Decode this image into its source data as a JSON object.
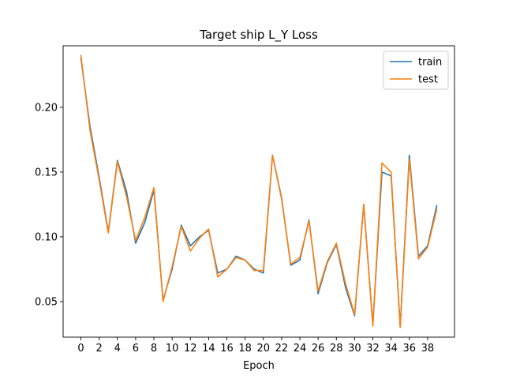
{
  "chart_data": {
    "type": "line",
    "title": "Target ship L_Y Loss",
    "xlabel": "Epoch",
    "ylabel": "",
    "x": [
      0,
      1,
      2,
      3,
      4,
      5,
      6,
      7,
      8,
      9,
      10,
      11,
      12,
      13,
      14,
      15,
      16,
      17,
      18,
      19,
      20,
      21,
      22,
      23,
      24,
      25,
      26,
      27,
      28,
      29,
      30,
      31,
      32,
      33,
      34,
      35,
      36,
      37,
      38,
      39
    ],
    "x_ticks": [
      0,
      2,
      4,
      6,
      8,
      10,
      12,
      14,
      16,
      18,
      20,
      22,
      24,
      26,
      28,
      30,
      32,
      34,
      36,
      38
    ],
    "y_ticks": [
      0.05,
      0.1,
      0.15,
      0.2
    ],
    "y_tick_labels": [
      "0.05",
      "0.10",
      "0.15",
      "0.20"
    ],
    "xlim": [
      -1.95,
      40.95
    ],
    "ylim": [
      0.0225,
      0.2475
    ],
    "legend_position": "top-right",
    "grid": false,
    "series": [
      {
        "name": "train",
        "color": "#1f77b4",
        "values": [
          0.238,
          0.185,
          0.146,
          0.104,
          0.159,
          0.135,
          0.095,
          0.111,
          0.136,
          0.051,
          0.075,
          0.109,
          0.093,
          0.1,
          0.105,
          0.072,
          0.075,
          0.085,
          0.082,
          0.075,
          0.072,
          0.163,
          0.13,
          0.078,
          0.082,
          0.113,
          0.056,
          0.08,
          0.094,
          0.061,
          0.039,
          0.125,
          0.032,
          0.15,
          0.147,
          0.031,
          0.163,
          0.085,
          0.093,
          0.124
        ]
      },
      {
        "name": "test",
        "color": "#ff7f0e",
        "values": [
          0.24,
          0.182,
          0.144,
          0.103,
          0.158,
          0.131,
          0.097,
          0.115,
          0.138,
          0.05,
          0.077,
          0.108,
          0.089,
          0.099,
          0.106,
          0.069,
          0.075,
          0.084,
          0.082,
          0.074,
          0.074,
          0.163,
          0.129,
          0.079,
          0.084,
          0.112,
          0.058,
          0.081,
          0.095,
          0.064,
          0.04,
          0.125,
          0.031,
          0.157,
          0.15,
          0.03,
          0.16,
          0.083,
          0.092,
          0.121
        ]
      }
    ]
  }
}
